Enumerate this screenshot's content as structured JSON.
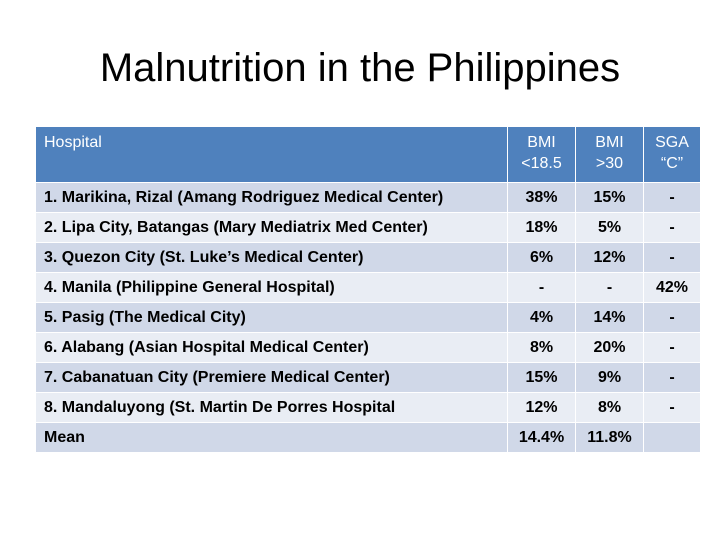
{
  "title": "Malnutrition in the Philippines",
  "colors": {
    "header_bg": "#4f81bd",
    "row_odd_bg": "#d0d8e8",
    "row_even_bg": "#e9edf4",
    "header_text": "#ffffff"
  },
  "table": {
    "headers": {
      "hospital": "Hospital",
      "bmi_low": [
        "BMI",
        "<18.5"
      ],
      "bmi_high": [
        "BMI",
        ">30"
      ],
      "sga": [
        "SGA",
        "“C”"
      ]
    },
    "rows": [
      [
        "1. Marikina, Rizal (Amang Rodriguez Medical Center)",
        "38%",
        "15%",
        "-"
      ],
      [
        "2. Lipa City, Batangas (Mary Mediatrix Med Center)",
        "18%",
        "5%",
        "-"
      ],
      [
        "3. Quezon City (St. Luke’s Medical Center)",
        "6%",
        "12%",
        "-"
      ],
      [
        "4. Manila (Philippine General Hospital)",
        "-",
        "-",
        "42%"
      ],
      [
        "5. Pasig (The Medical City)",
        "4%",
        "14%",
        "-"
      ],
      [
        "6. Alabang (Asian Hospital Medical Center)",
        "8%",
        "20%",
        "-"
      ],
      [
        "7. Cabanatuan City (Premiere Medical Center)",
        "15%",
        "9%",
        "-"
      ],
      [
        "8. Mandaluyong (St. Martin De Porres Hospital",
        "12%",
        "8%",
        "-"
      ],
      [
        "Mean",
        "14.4%",
        "11.8%",
        ""
      ]
    ]
  }
}
